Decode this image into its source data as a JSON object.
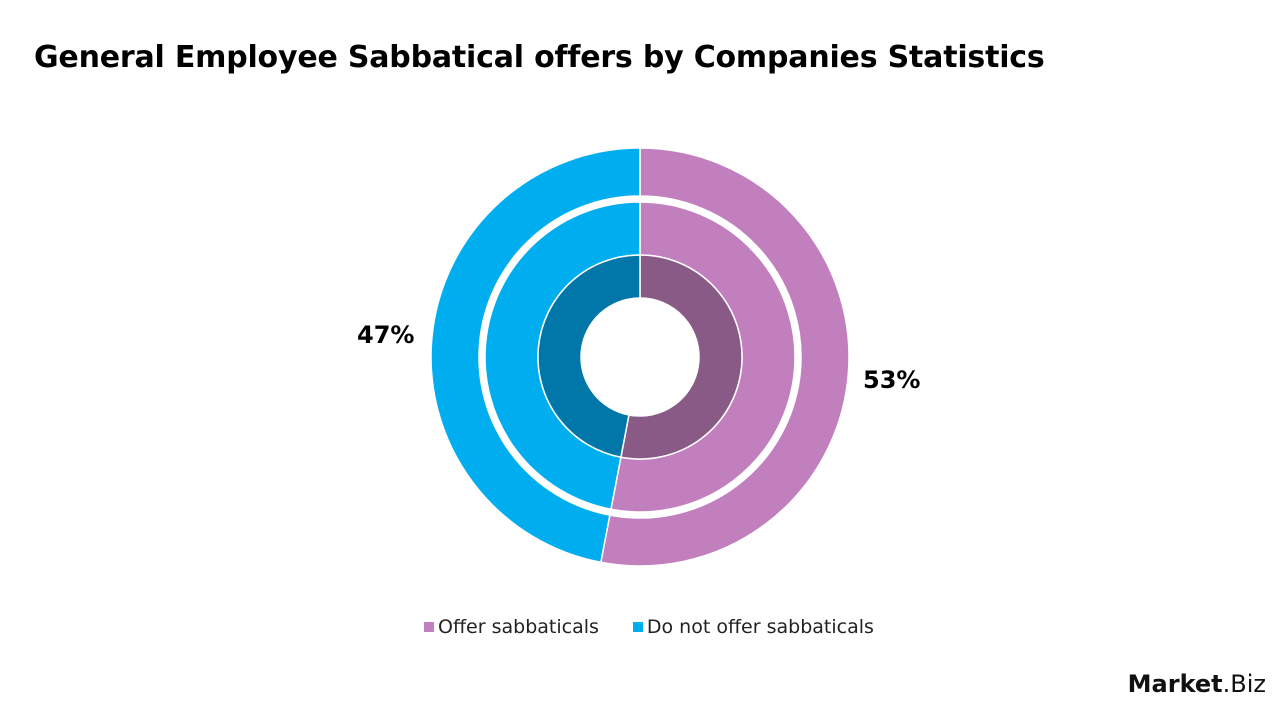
{
  "title": "General Employee Sabbatical offers by Companies Statistics",
  "labels": {
    "left_percent": "47%",
    "right_percent": "53%"
  },
  "legend": [
    {
      "label": "Offer sabbaticals",
      "color": "#c27fbe"
    },
    {
      "label": "Do not offer sabbaticals",
      "color": "#00aeef"
    }
  ],
  "logo": {
    "bold": "Market",
    "light": ".Biz"
  },
  "colors": {
    "offer": "#c27fbe",
    "offer_dark": "#8a5a87",
    "not_offer": "#00aeef",
    "not_offer_dark": "#0077a8"
  },
  "chart_data": {
    "type": "pie",
    "subtype": "nested-donut",
    "title": "General Employee Sabbatical offers by Companies Statistics",
    "categories": [
      "Offer sabbaticals",
      "Do not offer sabbaticals"
    ],
    "values": [
      53,
      47
    ],
    "unit": "%",
    "legend_position": "bottom",
    "rings": 3
  }
}
